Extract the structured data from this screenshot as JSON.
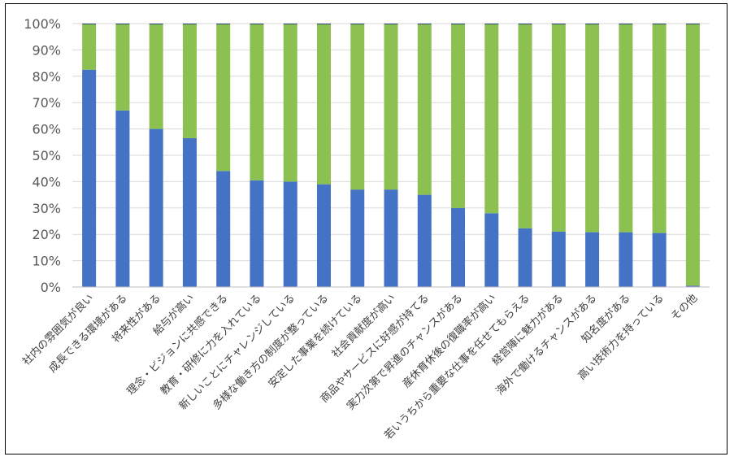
{
  "chart_data": {
    "type": "bar",
    "stacked": true,
    "percent_stacked": true,
    "categories": [
      "社内の雰囲気が良い",
      "成長できる環境がある",
      "将来性がある",
      "給与が高い",
      "理念・ビジョンに共感できる",
      "教育・研修に力を入れている",
      "新しいことにチャレンジしている",
      "多様な働き方の制度が整っている",
      "安定した事業を続けている",
      "社会貢献度が高い",
      "商品やサービスに好感が持てる",
      "実力次第で昇進のチャンスがある",
      "産休育休後の復職率が高い",
      "若いうちから重要な仕事を任せてもらえる",
      "経営陣に魅力がある",
      "海外で働けるチャンスがある",
      "知名度がある",
      "高い技術力を持っている",
      "その他"
    ],
    "series": [
      {
        "color": "#4472C4",
        "values": [
          82.5,
          67,
          60,
          56.5,
          44,
          40.5,
          40,
          39,
          37,
          37,
          35,
          30,
          28,
          22.3,
          21,
          20.8,
          20.8,
          20.5,
          0.5
        ]
      },
      {
        "color": "#8CC152",
        "values": [
          17.2,
          32.7,
          39.7,
          43.2,
          55.7,
          59.2,
          59.7,
          60.7,
          62.7,
          62.7,
          64.7,
          69.7,
          71.7,
          77.4,
          78.7,
          78.9,
          78.9,
          79.2,
          99.2
        ]
      },
      {
        "color": "#264478",
        "values": [
          0.3,
          0.3,
          0.3,
          0.3,
          0.3,
          0.3,
          0.3,
          0.3,
          0.3,
          0.3,
          0.3,
          0.3,
          0.3,
          0.3,
          0.3,
          0.3,
          0.3,
          0.3,
          0.3
        ]
      }
    ],
    "yticks": [
      "0%",
      "10%",
      "20%",
      "30%",
      "40%",
      "50%",
      "60%",
      "70%",
      "80%",
      "90%",
      "100%"
    ],
    "ylim": [
      0,
      100
    ],
    "grid": true,
    "legend": "none",
    "gridline_color": "#D9D9D9",
    "axis_line_color": "#BFBFBF"
  }
}
